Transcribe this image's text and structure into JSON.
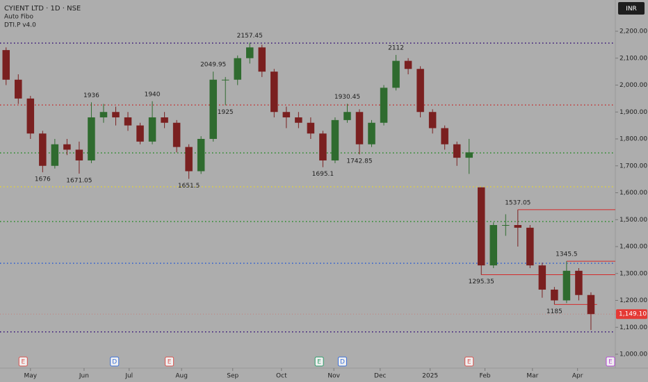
{
  "chart_data": {
    "type": "candlestick",
    "title": "CYIENT LTD · 1D · NSE",
    "indicators": [
      "Auto Fibo",
      "DTI.P v4.0"
    ],
    "currency": "INR",
    "last_price": {
      "value": 1149.1,
      "label": "1,149.10"
    },
    "up_color": "#2f6b2f",
    "down_color": "#7a2020",
    "open": [
      2130,
      2020,
      1950,
      1820,
      1700,
      1780,
      1760,
      1720,
      1880,
      1900,
      1880,
      1850,
      1790,
      1880,
      1860,
      1770,
      1680,
      1800,
      2020,
      2020,
      2100,
      2140,
      2050,
      1900,
      1880,
      1860,
      1820,
      1720,
      1870,
      1900,
      1780,
      1860,
      1990,
      2090,
      2060,
      1900,
      1840,
      1780,
      1730,
      1620,
      1330,
      1480,
      1480,
      1470,
      1330,
      1240,
      1200,
      1310,
      1220
    ],
    "high": [
      2140,
      2040,
      1960,
      1830,
      1800,
      1800,
      1790,
      1936,
      1930,
      1920,
      1900,
      1860,
      1940,
      1900,
      1870,
      1780,
      1810,
      2049.95,
      2030,
      2110,
      2157.45,
      2150,
      2060,
      1920,
      1900,
      1880,
      1830,
      1880,
      1930.45,
      1910,
      1870,
      2000,
      2112,
      2100,
      2070,
      1910,
      1850,
      1790,
      1800,
      1620,
      1490,
      1520,
      1537.05,
      1480,
      1340,
      1250,
      1345.5,
      1320,
      1230
    ],
    "low": [
      2000,
      1930,
      1800,
      1676,
      1690,
      1740,
      1671.05,
      1710,
      1860,
      1850,
      1830,
      1780,
      1780,
      1840,
      1750,
      1651.5,
      1670,
      1790,
      1925,
      2000,
      2080,
      2030,
      1880,
      1840,
      1840,
      1800,
      1695.1,
      1710,
      1860,
      1742.85,
      1770,
      1850,
      1980,
      2040,
      1880,
      1820,
      1760,
      1700,
      1670,
      1295.35,
      1320,
      1440,
      1400,
      1320,
      1210,
      1185,
      1190,
      1200,
      1090
    ],
    "close": [
      2020,
      1950,
      1820,
      1700,
      1780,
      1760,
      1720,
      1880,
      1900,
      1880,
      1850,
      1790,
      1880,
      1860,
      1770,
      1680,
      1800,
      2020,
      2020,
      2100,
      2140,
      2050,
      1900,
      1880,
      1860,
      1820,
      1720,
      1870,
      1900,
      1780,
      1860,
      1990,
      2090,
      2060,
      1900,
      1840,
      1780,
      1730,
      1750,
      1330,
      1480,
      1480,
      1470,
      1330,
      1240,
      1200,
      1310,
      1220,
      1149.1
    ],
    "pivots": [
      {
        "x": 3,
        "value": 1676
      },
      {
        "x": 6,
        "value": 1671.05
      },
      {
        "x": 7,
        "value": 1936
      },
      {
        "x": 12,
        "value": 1940
      },
      {
        "x": 15,
        "value": 1651.5
      },
      {
        "x": 17,
        "value": 2049.95
      },
      {
        "x": 18,
        "value": 1925
      },
      {
        "x": 20,
        "value": 2157.45
      },
      {
        "x": 26,
        "value": 1695.1
      },
      {
        "x": 28,
        "value": 1930.45
      },
      {
        "x": 29,
        "value": 1742.85
      },
      {
        "x": 32,
        "value": 2112
      },
      {
        "x": 39,
        "value": 1295.35
      },
      {
        "x": 42,
        "value": 1537.05
      },
      {
        "x": 45,
        "value": 1185
      },
      {
        "x": 46,
        "value": 1345.5
      }
    ],
    "levels": [
      {
        "value": 2156,
        "color": "#3b1a7a"
      },
      {
        "value": 1926,
        "color": "#c23b3b"
      },
      {
        "value": 1748,
        "color": "#2e8b2e"
      },
      {
        "value": 1622,
        "color": "#e0d040"
      },
      {
        "value": 1493,
        "color": "#2e8b2e"
      },
      {
        "value": 1338,
        "color": "#2f5fd0"
      },
      {
        "value": 1083,
        "color": "#3b1a7a"
      }
    ],
    "zones": [
      {
        "from": 39,
        "to": 50,
        "value": 1295.35
      },
      {
        "from": 42,
        "to": 50,
        "value": 1537.05
      },
      {
        "from": 45,
        "to": 48.5,
        "value": 1185
      },
      {
        "from": 46,
        "to": 50,
        "value": 1345.5
      }
    ],
    "zone_color": "#d42a2a",
    "events": [
      {
        "x": 1.4,
        "label": "E",
        "color": "#d9534f"
      },
      {
        "x": 8.9,
        "label": "D",
        "color": "#3a6fd8"
      },
      {
        "x": 13.4,
        "label": "E",
        "color": "#d9534f"
      },
      {
        "x": 25.7,
        "label": "E",
        "color": "#2e9c6a"
      },
      {
        "x": 27.6,
        "label": "D",
        "color": "#3a6fd8"
      },
      {
        "x": 38,
        "label": "E",
        "color": "#d9534f"
      },
      {
        "x": 49.6,
        "label": "E",
        "color": "#b84bd8"
      }
    ],
    "xlim": [
      -0.5,
      50
    ],
    "xticks": [
      {
        "value": 2.0,
        "label": "May"
      },
      {
        "value": 6.4,
        "label": "Jun"
      },
      {
        "value": 10.1,
        "label": "Jul"
      },
      {
        "value": 14.4,
        "label": "Aug"
      },
      {
        "value": 18.6,
        "label": "Sep"
      },
      {
        "value": 22.6,
        "label": "Oct"
      },
      {
        "value": 26.9,
        "label": "Nov"
      },
      {
        "value": 30.7,
        "label": "Dec"
      },
      {
        "value": 34.8,
        "label": "2025"
      },
      {
        "value": 39.3,
        "label": "Feb"
      },
      {
        "value": 43.2,
        "label": "Mar"
      },
      {
        "value": 46.9,
        "label": "Apr"
      }
    ],
    "ylim": [
      1000,
      2200
    ],
    "yticks": [
      {
        "value": 1000,
        "label": "1,000.00"
      },
      {
        "value": 1100,
        "label": "1,100.00"
      },
      {
        "value": 1200,
        "label": "1,200.00"
      },
      {
        "value": 1300,
        "label": "1,300.00"
      },
      {
        "value": 1400,
        "label": "1,400.00"
      },
      {
        "value": 1500,
        "label": "1,500.00"
      },
      {
        "value": 1600,
        "label": "1,600.00"
      },
      {
        "value": 1700,
        "label": "1,700.00"
      },
      {
        "value": 1800,
        "label": "1,800.00"
      },
      {
        "value": 1900,
        "label": "1,900.00"
      },
      {
        "value": 2000,
        "label": "2,000.00"
      },
      {
        "value": 2100,
        "label": "2,100.00"
      },
      {
        "value": 2200,
        "label": "2,200.00"
      }
    ]
  }
}
